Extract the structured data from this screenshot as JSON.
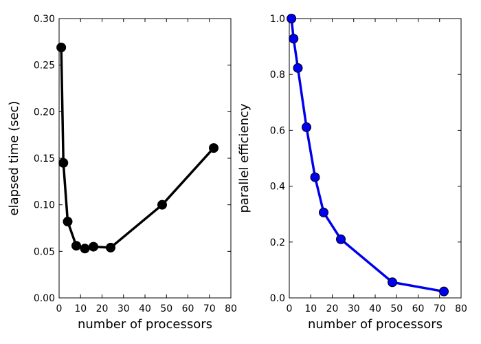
{
  "chart_data": [
    {
      "type": "line",
      "title": "",
      "xlabel": "number of processors",
      "ylabel": "elapsed time (sec)",
      "xlim": [
        0,
        80
      ],
      "ylim": [
        0,
        0.3
      ],
      "xticks": [
        "0",
        "10",
        "20",
        "30",
        "40",
        "50",
        "60",
        "70",
        "80"
      ],
      "yticks": [
        "0.00",
        "0.05",
        "0.10",
        "0.15",
        "0.20",
        "0.25",
        "0.30"
      ],
      "grid": false,
      "series": [
        {
          "color": "#000000",
          "x": [
            1,
            2,
            4,
            8,
            12,
            16,
            24,
            48,
            72
          ],
          "y": [
            0.269,
            0.145,
            0.082,
            0.056,
            0.053,
            0.055,
            0.054,
            0.1,
            0.161
          ]
        }
      ]
    },
    {
      "type": "line",
      "title": "",
      "xlabel": "number of processors",
      "ylabel": "parallel efficiency",
      "xlim": [
        0,
        80
      ],
      "ylim": [
        0,
        1.0
      ],
      "xticks": [
        "0",
        "10",
        "20",
        "30",
        "40",
        "50",
        "60",
        "70",
        "80"
      ],
      "yticks": [
        "0.0",
        "0.2",
        "0.4",
        "0.6",
        "0.8",
        "1.0"
      ],
      "grid": false,
      "series": [
        {
          "color": "#0000ee",
          "x": [
            1,
            2,
            4,
            8,
            12,
            16,
            24,
            48,
            72
          ],
          "y": [
            1.0,
            0.928,
            0.823,
            0.611,
            0.432,
            0.306,
            0.21,
            0.056,
            0.023
          ]
        }
      ]
    }
  ]
}
